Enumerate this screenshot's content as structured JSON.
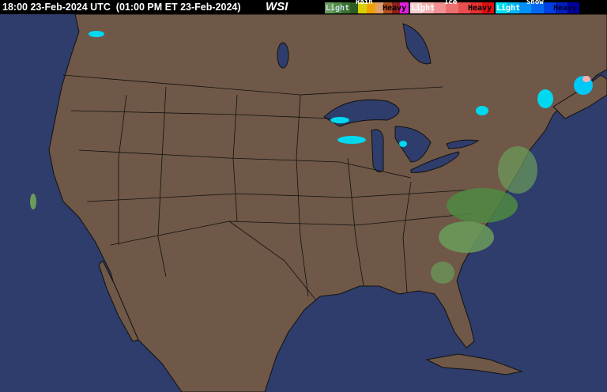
{
  "header": {
    "time_label": "18:00 23-Feb-2024 UTC  (01:00 PM ET 23-Feb-2024)",
    "logo": "WSI"
  },
  "legend": {
    "rain": {
      "title": "Rain",
      "light": "Light",
      "heavy": "Heavy",
      "colors": [
        "#6b9c5a",
        "#4f8a43",
        "#3a7330",
        "#2b5c22",
        "#d8d000",
        "#f0a000",
        "#e0a070",
        "#b05020",
        "#902020",
        "#e020e0"
      ]
    },
    "ice": {
      "title": "Ice",
      "light": "Light",
      "heavy": "Heavy",
      "colors": [
        "#f8d0d0",
        "#f4b0b0",
        "#f09090",
        "#ec7070",
        "#e85050",
        "#e43030",
        "#e01010"
      ]
    },
    "snow": {
      "title": "Snow",
      "light": "Light",
      "heavy": "Heavy",
      "colors": [
        "#00e0f0",
        "#00b8f8",
        "#0090f8",
        "#0068f0",
        "#0040e0",
        "#0020c0",
        "#0000a0"
      ]
    }
  },
  "colors": {
    "land": "#6f5847",
    "water": "#2e3d6b",
    "border": "#111111"
  }
}
